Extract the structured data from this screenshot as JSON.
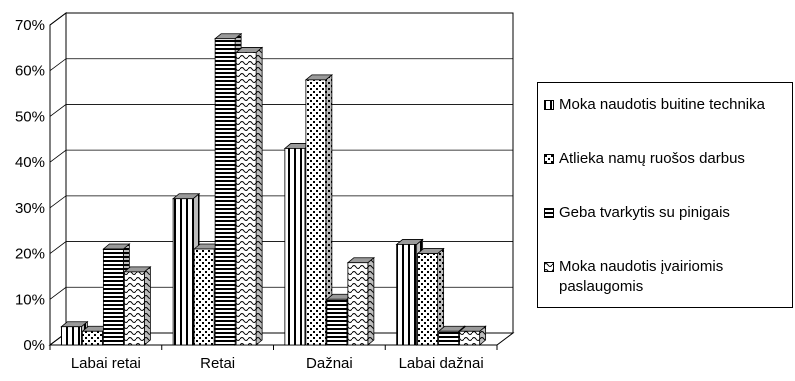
{
  "chart_data": {
    "type": "bar",
    "subtype": "3d-clustered-column",
    "categories": [
      "Labai retai",
      "Retai",
      "Dažnai",
      "Labai dažnai"
    ],
    "series": [
      {
        "name": "Moka naudotis buitine technika",
        "values": [
          4,
          32,
          43,
          22
        ],
        "pattern": "vertical-lines"
      },
      {
        "name": "Atlieka namų ruošos darbus",
        "values": [
          3,
          21,
          58,
          20
        ],
        "pattern": "dots"
      },
      {
        "name": "Geba tvarkytis su pinigais",
        "values": [
          21,
          67,
          10,
          3
        ],
        "pattern": "horizontal-lines"
      },
      {
        "name": "Moka naudotis įvairiomis paslaugomis",
        "values": [
          16,
          64,
          18,
          3
        ],
        "pattern": "waves"
      }
    ],
    "yticks": [
      "0%",
      "10%",
      "20%",
      "30%",
      "40%",
      "50%",
      "60%",
      "70%"
    ],
    "ylim": [
      0,
      70
    ],
    "unit": "%",
    "grid": true,
    "legend_position": "right",
    "colors": {
      "bar_fill": "#ffffff",
      "bar_ink": "#000000",
      "side_shade": "#bdbdbd",
      "top_shade": "#9a9a9a"
    }
  }
}
